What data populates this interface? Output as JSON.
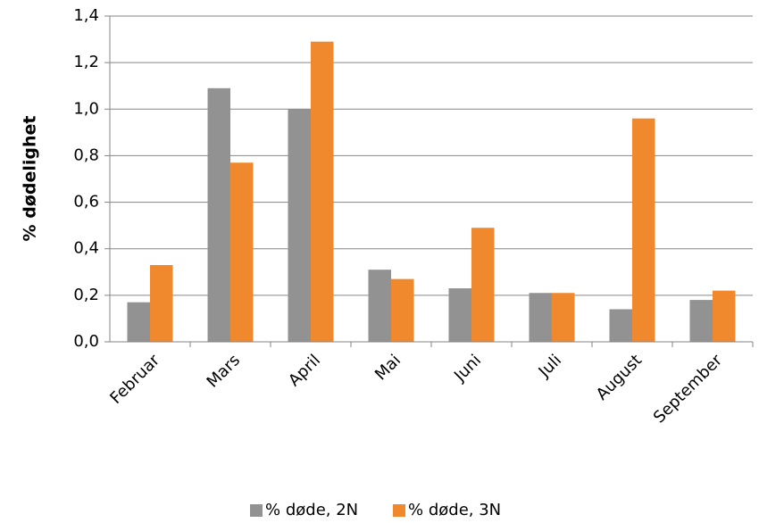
{
  "chart_data": {
    "type": "bar",
    "y_label": "% dødelighet",
    "categories": [
      "Februar",
      "Mars",
      "April",
      "Mai",
      "Juni",
      "Juli",
      "August",
      "September"
    ],
    "series": [
      {
        "name": "% døde, 2N",
        "color": "#929292",
        "values": [
          0.17,
          1.09,
          1.0,
          0.31,
          0.23,
          0.21,
          0.14,
          0.18
        ]
      },
      {
        "name": "% døde, 3N",
        "color": "#f0882d",
        "values": [
          0.33,
          0.77,
          1.29,
          0.27,
          0.49,
          0.21,
          0.96,
          0.22
        ]
      }
    ],
    "ylim": [
      0,
      1.4
    ],
    "yticks": [
      {
        "value": 0,
        "label": "0,0"
      },
      {
        "value": 0.2,
        "label": "0,2"
      },
      {
        "value": 0.4,
        "label": "0,4"
      },
      {
        "value": 0.6,
        "label": "0,6"
      },
      {
        "value": 0.8,
        "label": "0,8"
      },
      {
        "value": 1.0,
        "label": "1,0"
      },
      {
        "value": 1.2,
        "label": "1,2"
      },
      {
        "value": 1.4,
        "label": "1,4"
      }
    ],
    "grid": true,
    "legend": "bottom"
  }
}
